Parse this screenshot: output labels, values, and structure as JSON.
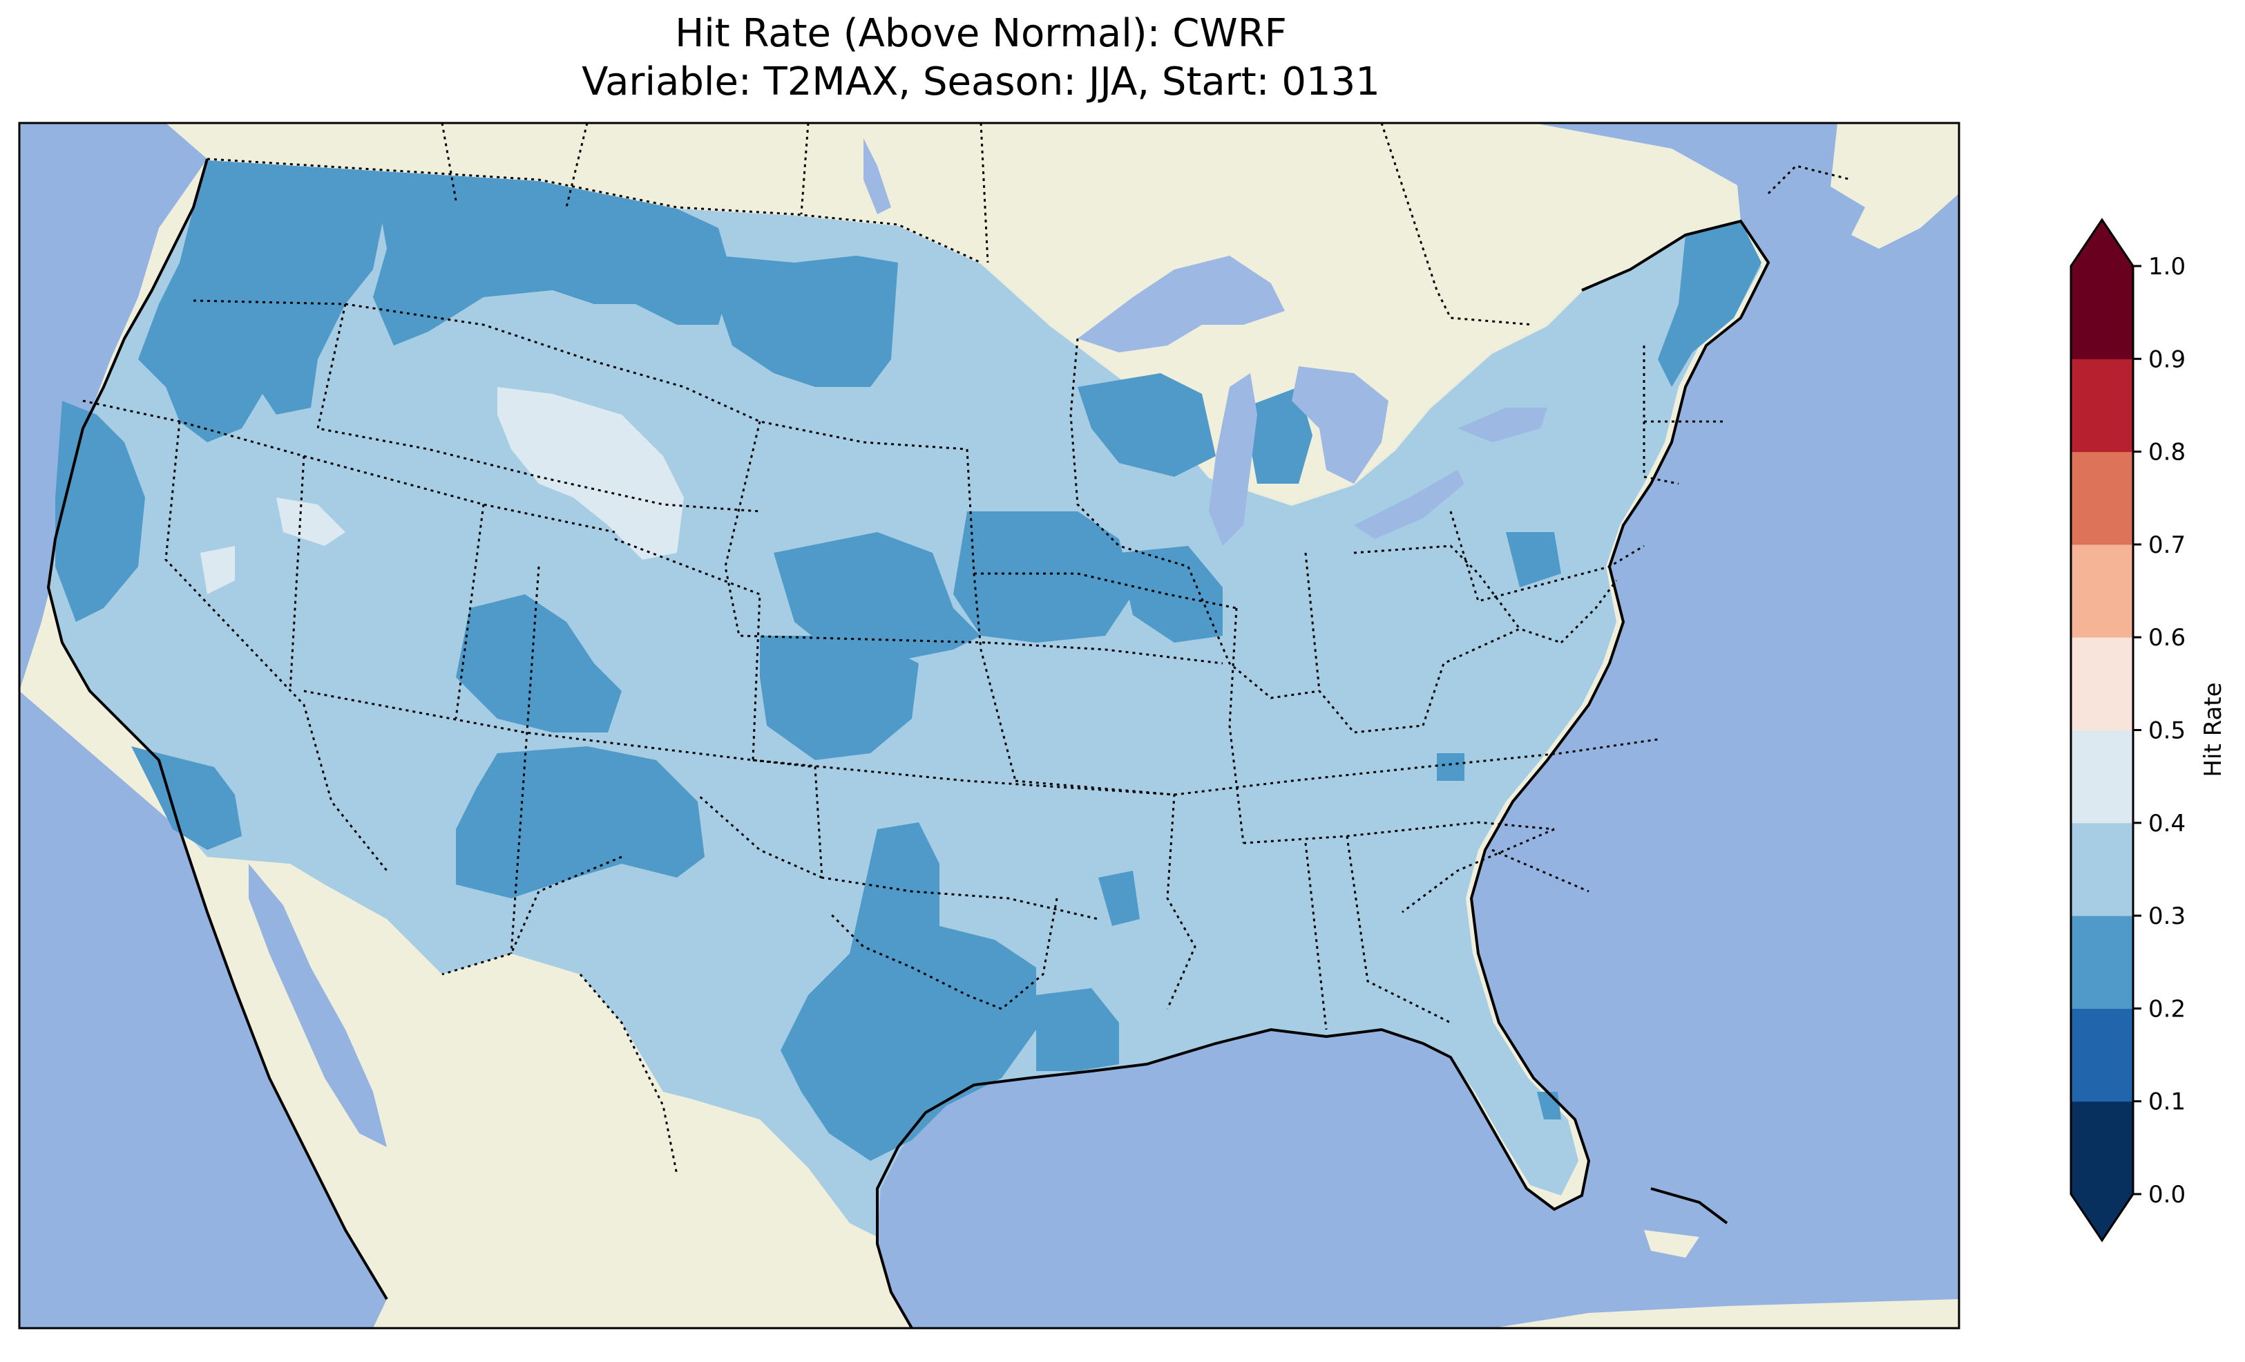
{
  "figure": {
    "title_line1": "Hit Rate (Above Normal): CWRF",
    "title_line2": "Variable: T2MAX, Season: JJA, Start: 0131"
  },
  "map": {
    "colors": {
      "ocean": "#95b3e0",
      "land": "#efefdc",
      "lake": "#9db9e3",
      "state_border": "#000000",
      "coastline": "#000000"
    },
    "field_classes": [
      {
        "range": [
          0.2,
          0.3
        ],
        "color": "#4f9ac9"
      },
      {
        "range": [
          0.3,
          0.4
        ],
        "color": "#a6cde3"
      },
      {
        "range": [
          0.4,
          0.5
        ],
        "color": "#dde9f1"
      }
    ]
  },
  "colorbar": {
    "label": "Hit Rate",
    "ticks": [
      "0.0",
      "0.1",
      "0.2",
      "0.3",
      "0.4",
      "0.5",
      "0.6",
      "0.7",
      "0.8",
      "0.9",
      "1.0"
    ],
    "bins": [
      {
        "from": 0.0,
        "to": 0.1,
        "color": "#08305e"
      },
      {
        "from": 0.1,
        "to": 0.2,
        "color": "#2166ac"
      },
      {
        "from": 0.2,
        "to": 0.3,
        "color": "#4f9ac9"
      },
      {
        "from": 0.3,
        "to": 0.4,
        "color": "#a6cde3"
      },
      {
        "from": 0.4,
        "to": 0.5,
        "color": "#dde9f1"
      },
      {
        "from": 0.5,
        "to": 0.6,
        "color": "#f9e4dc"
      },
      {
        "from": 0.6,
        "to": 0.7,
        "color": "#f4b495"
      },
      {
        "from": 0.7,
        "to": 0.8,
        "color": "#dd7358"
      },
      {
        "from": 0.8,
        "to": 0.9,
        "color": "#b7202e"
      },
      {
        "from": 0.9,
        "to": 1.0,
        "color": "#690020"
      }
    ],
    "extend_under_color": "#08305e",
    "extend_over_color": "#690020"
  }
}
